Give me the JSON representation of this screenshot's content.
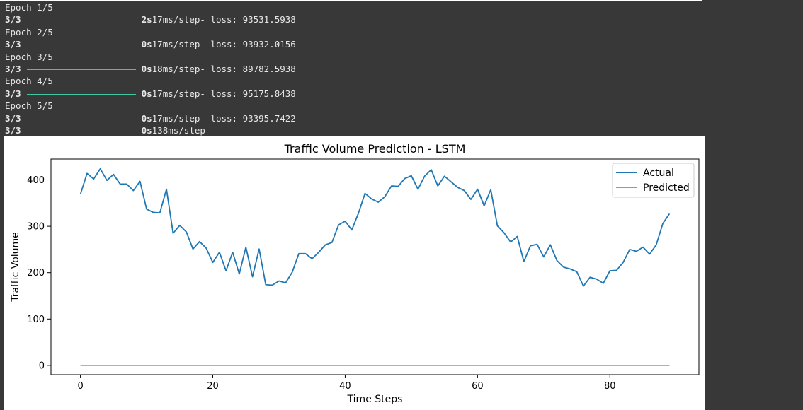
{
  "console": {
    "epochs": [
      {
        "label": "Epoch 1/5",
        "progress": "3/3",
        "time": "2s",
        "step": "17ms/step",
        "loss_text": "- loss: 93531.5938"
      },
      {
        "label": "Epoch 2/5",
        "progress": "3/3",
        "time": "0s",
        "step": "17ms/step",
        "loss_text": "- loss: 93932.0156"
      },
      {
        "label": "Epoch 3/5",
        "progress": "3/3",
        "time": "0s",
        "step": "18ms/step",
        "loss_text": "- loss: 89782.5938"
      },
      {
        "label": "Epoch 4/5",
        "progress": "3/3",
        "time": "0s",
        "step": "17ms/step",
        "loss_text": "- loss: 95175.8438"
      },
      {
        "label": "Epoch 5/5",
        "progress": "3/3",
        "time": "0s",
        "step": "17ms/step",
        "loss_text": "- loss: 93395.7422"
      }
    ],
    "predict": {
      "progress": "3/3",
      "time": "0s",
      "step": "138ms/step"
    }
  },
  "colors": {
    "actual": "#1f77b4",
    "predicted": "#ff7f0e",
    "console_bg": "#383838",
    "progress_bar": "#3ec7a0"
  },
  "chart_data": {
    "type": "line",
    "title": "Traffic Volume Prediction - LSTM",
    "xlabel": "Time Steps",
    "ylabel": "Traffic Volume",
    "xlim": [
      -4.45,
      93.45
    ],
    "ylim": [
      -20,
      445
    ],
    "xticks": [
      0,
      20,
      40,
      60,
      80
    ],
    "yticks": [
      0,
      100,
      200,
      300,
      400
    ],
    "grid": false,
    "legend": "top-right",
    "x": [
      0,
      1,
      2,
      3,
      4,
      5,
      6,
      7,
      8,
      9,
      10,
      11,
      12,
      13,
      14,
      15,
      16,
      17,
      18,
      19,
      20,
      21,
      22,
      23,
      24,
      25,
      26,
      27,
      28,
      29,
      30,
      31,
      32,
      33,
      34,
      35,
      36,
      37,
      38,
      39,
      40,
      41,
      42,
      43,
      44,
      45,
      46,
      47,
      48,
      49,
      50,
      51,
      52,
      53,
      54,
      55,
      56,
      57,
      58,
      59,
      60,
      61,
      62,
      63,
      64,
      65,
      66,
      67,
      68,
      69,
      70,
      71,
      72,
      73,
      74,
      75,
      76,
      77,
      78,
      79,
      80,
      81,
      82,
      83,
      84,
      85,
      86,
      87,
      88,
      89
    ],
    "series": [
      {
        "name": "Actual",
        "values": [
          369,
          414,
          402,
          424,
          399,
          412,
          391,
          391,
          377,
          397,
          337,
          330,
          329,
          380,
          285,
          302,
          288,
          251,
          267,
          253,
          222,
          244,
          204,
          244,
          197,
          255,
          191,
          251,
          174,
          173,
          182,
          178,
          201,
          241,
          241,
          230,
          244,
          260,
          265,
          303,
          311,
          292,
          328,
          371,
          359,
          352,
          364,
          387,
          386,
          403,
          409,
          380,
          408,
          422,
          387,
          408,
          396,
          384,
          377,
          358,
          380,
          344,
          379,
          301,
          286,
          266,
          278,
          224,
          258,
          261,
          234,
          260,
          226,
          212,
          208,
          202,
          171,
          190,
          186,
          177,
          204,
          205,
          222,
          250,
          246,
          255,
          240,
          260,
          306,
          327
        ]
      },
      {
        "name": "Predicted",
        "values": [
          0,
          0,
          0,
          0,
          0,
          0,
          0,
          0,
          0,
          0,
          0,
          0,
          0,
          0,
          0,
          0,
          0,
          0,
          0,
          0,
          0,
          0,
          0,
          0,
          0,
          0,
          0,
          0,
          0,
          0,
          0,
          0,
          0,
          0,
          0,
          0,
          0,
          0,
          0,
          0,
          0,
          0,
          0,
          0,
          0,
          0,
          0,
          0,
          0,
          0,
          0,
          0,
          0,
          0,
          0,
          0,
          0,
          0,
          0,
          0,
          0,
          0,
          0,
          0,
          0,
          0,
          0,
          0,
          0,
          0,
          0,
          0,
          0,
          0,
          0,
          0,
          0,
          0,
          0,
          0,
          0,
          0,
          0,
          0,
          0,
          0,
          0,
          0,
          0,
          0
        ]
      }
    ]
  }
}
